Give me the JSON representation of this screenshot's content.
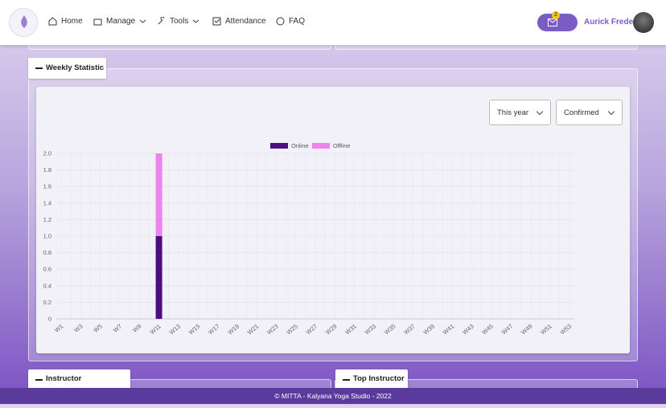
{
  "nav": {
    "items": [
      "Home",
      "Manage",
      "Tools",
      "Attendance",
      "FAQ"
    ],
    "badge": "2",
    "user": "Aurick Frederick"
  },
  "sections": {
    "weekly": "Weekly Statistic",
    "performance": "Instructor Performance",
    "top": "Top Instructor"
  },
  "filters": [
    "This year",
    "Confirmed"
  ],
  "footer": "© MITTA - Kalyana Yoga Studio - 2022",
  "chart_data": {
    "type": "stacked_bar",
    "categories": [
      "W1",
      null,
      "W3",
      null,
      "W5",
      null,
      "W7",
      null,
      "W9",
      null,
      "W11",
      null,
      "W13",
      null,
      "W15",
      null,
      "W17",
      null,
      "W19",
      null,
      "W21",
      null,
      "W23",
      null,
      "W25",
      null,
      "W27",
      null,
      "W29",
      null,
      "W31",
      null,
      "W33",
      null,
      "W35",
      null,
      "W37",
      null,
      "W39",
      null,
      "W41",
      null,
      "W43",
      null,
      "W45",
      null,
      "W47",
      null,
      "W49",
      null,
      "W51",
      null,
      "W53"
    ],
    "series": [
      {
        "name": "Online",
        "color": "#4b0f82",
        "values": [
          0,
          0,
          0,
          0,
          0,
          0,
          0,
          0,
          0,
          0,
          1,
          0,
          0,
          0,
          0,
          0,
          0,
          0,
          0,
          0,
          0,
          0,
          0,
          0,
          0,
          0,
          0,
          0,
          0,
          0,
          0,
          0,
          0,
          0,
          0,
          0,
          0,
          0,
          0,
          0,
          0,
          0,
          0,
          0,
          0,
          0,
          0,
          0,
          0,
          0,
          0,
          0,
          0
        ]
      },
      {
        "name": "Offline",
        "color": "#ee82ee",
        "values": [
          0,
          0,
          0,
          0,
          0,
          0,
          0,
          0,
          0,
          0,
          1,
          0,
          0,
          0,
          0,
          0,
          0,
          0,
          0,
          0,
          0,
          0,
          0,
          0,
          0,
          0,
          0,
          0,
          0,
          0,
          0,
          0,
          0,
          0,
          0,
          0,
          0,
          0,
          0,
          0,
          0,
          0,
          0,
          0,
          0,
          0,
          0,
          0,
          0,
          0,
          0,
          0,
          0
        ]
      }
    ],
    "ylim": [
      0,
      2
    ],
    "yticks": [
      0,
      0.2,
      0.4,
      0.6,
      0.8,
      {
        "value": 1,
        "label": "1.0"
      },
      1.2,
      1.4,
      1.6,
      1.8,
      {
        "value": 2,
        "label": "2.0"
      }
    ],
    "grid": true,
    "legend": "top"
  }
}
